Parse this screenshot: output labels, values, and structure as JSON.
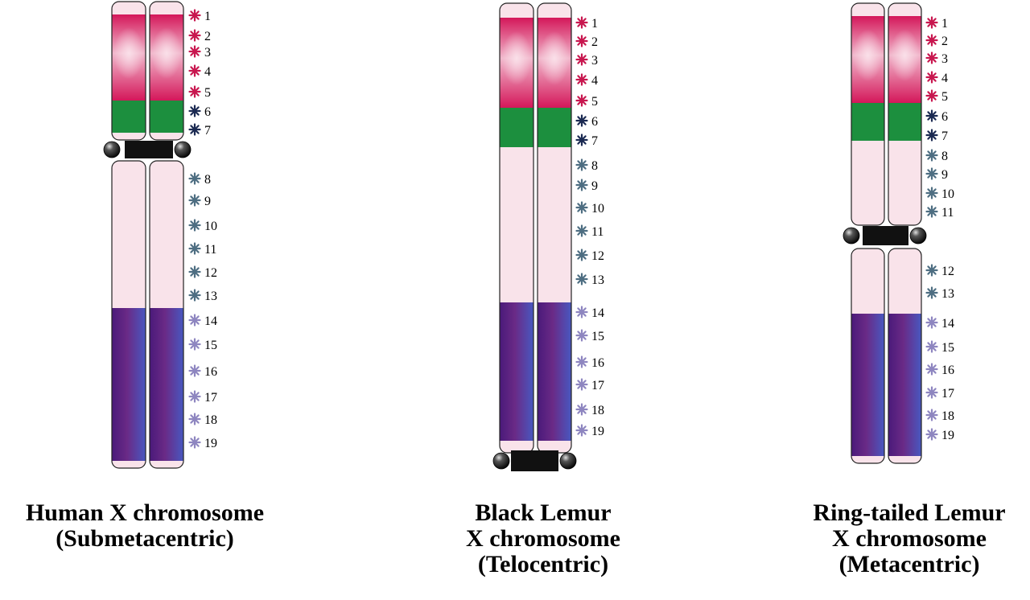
{
  "colors": {
    "band_magenta": "#d4175a",
    "band_magenta_light": "#f4c4d4",
    "band_green": "#1c8f3e",
    "band_pink": "#f9e3ea",
    "band_purple": "#4a1a7a",
    "band_blue": "#4858b8",
    "centromere": "#111111",
    "star_red": "#c8174f",
    "star_navy": "#1b2a52",
    "star_slate": "#4e6e82",
    "star_lavender": "#8e86c0"
  },
  "legend_markers": [
    "1",
    "2",
    "3",
    "4",
    "5",
    "6",
    "7",
    "8",
    "9",
    "10",
    "11",
    "12",
    "13",
    "14",
    "15",
    "16",
    "17",
    "18",
    "19"
  ],
  "chromosomes": [
    {
      "id": "human",
      "caption_lines": [
        "Human X chromosome",
        "(Submetacentric)"
      ],
      "centromere_position": "submetacentric",
      "markers": [
        {
          "label": "1",
          "color": "star_red"
        },
        {
          "label": "2",
          "color": "star_red"
        },
        {
          "label": "3",
          "color": "star_red"
        },
        {
          "label": "4",
          "color": "star_red"
        },
        {
          "label": "5",
          "color": "star_red"
        },
        {
          "label": "6",
          "color": "star_navy"
        },
        {
          "label": "7",
          "color": "star_navy"
        },
        {
          "label": "8",
          "color": "star_slate"
        },
        {
          "label": "9",
          "color": "star_slate"
        },
        {
          "label": "10",
          "color": "star_slate"
        },
        {
          "label": "11",
          "color": "star_slate"
        },
        {
          "label": "12",
          "color": "star_slate"
        },
        {
          "label": "13",
          "color": "star_slate"
        },
        {
          "label": "14",
          "color": "star_lavender"
        },
        {
          "label": "15",
          "color": "star_lavender"
        },
        {
          "label": "16",
          "color": "star_lavender"
        },
        {
          "label": "17",
          "color": "star_lavender"
        },
        {
          "label": "18",
          "color": "star_lavender"
        },
        {
          "label": "19",
          "color": "star_lavender"
        }
      ]
    },
    {
      "id": "black-lemur",
      "caption_lines": [
        "Black Lemur",
        "X chromosome",
        "(Telocentric)"
      ],
      "centromere_position": "telocentric",
      "markers": [
        {
          "label": "1",
          "color": "star_red"
        },
        {
          "label": "2",
          "color": "star_red"
        },
        {
          "label": "3",
          "color": "star_red"
        },
        {
          "label": "4",
          "color": "star_red"
        },
        {
          "label": "5",
          "color": "star_red"
        },
        {
          "label": "6",
          "color": "star_navy"
        },
        {
          "label": "7",
          "color": "star_navy"
        },
        {
          "label": "8",
          "color": "star_slate"
        },
        {
          "label": "9",
          "color": "star_slate"
        },
        {
          "label": "10",
          "color": "star_slate"
        },
        {
          "label": "11",
          "color": "star_slate"
        },
        {
          "label": "12",
          "color": "star_slate"
        },
        {
          "label": "13",
          "color": "star_slate"
        },
        {
          "label": "14",
          "color": "star_lavender"
        },
        {
          "label": "15",
          "color": "star_lavender"
        },
        {
          "label": "16",
          "color": "star_lavender"
        },
        {
          "label": "17",
          "color": "star_lavender"
        },
        {
          "label": "18",
          "color": "star_lavender"
        },
        {
          "label": "19",
          "color": "star_lavender"
        }
      ]
    },
    {
      "id": "ring-tailed-lemur",
      "caption_lines": [
        "Ring-tailed Lemur",
        "X chromosome",
        "(Metacentric)"
      ],
      "centromere_position": "metacentric",
      "markers": [
        {
          "label": "1",
          "color": "star_red"
        },
        {
          "label": "2",
          "color": "star_red"
        },
        {
          "label": "3",
          "color": "star_red"
        },
        {
          "label": "4",
          "color": "star_red"
        },
        {
          "label": "5",
          "color": "star_red"
        },
        {
          "label": "6",
          "color": "star_navy"
        },
        {
          "label": "7",
          "color": "star_navy"
        },
        {
          "label": "8",
          "color": "star_slate"
        },
        {
          "label": "9",
          "color": "star_slate"
        },
        {
          "label": "10",
          "color": "star_slate"
        },
        {
          "label": "11",
          "color": "star_slate"
        },
        {
          "label": "12",
          "color": "star_slate"
        },
        {
          "label": "13",
          "color": "star_slate"
        },
        {
          "label": "14",
          "color": "star_lavender"
        },
        {
          "label": "15",
          "color": "star_lavender"
        },
        {
          "label": "16",
          "color": "star_lavender"
        },
        {
          "label": "17",
          "color": "star_lavender"
        },
        {
          "label": "18",
          "color": "star_lavender"
        },
        {
          "label": "19",
          "color": "star_lavender"
        }
      ]
    }
  ]
}
